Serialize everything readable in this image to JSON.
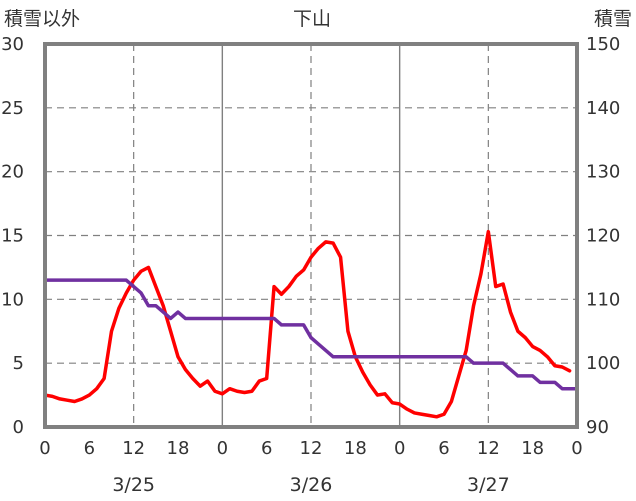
{
  "chart_data": {
    "type": "line",
    "title": "下山",
    "left_axis_label": "積雪以外",
    "right_axis_label": "積雪",
    "grid": true,
    "y_left": {
      "min": 0,
      "max": 30,
      "ticks": [
        0,
        5,
        10,
        15,
        20,
        25,
        30
      ]
    },
    "y_right": {
      "min": 90,
      "max": 150,
      "ticks": [
        90,
        100,
        110,
        120,
        130,
        140,
        150
      ]
    },
    "x_axis": {
      "unit": "hour",
      "range_hours": [
        0,
        72
      ],
      "tick_labels": [
        "0",
        "6",
        "12",
        "18",
        "0",
        "6",
        "12",
        "18",
        "0",
        "6",
        "12",
        "18",
        "0"
      ],
      "date_labels": [
        {
          "label": "3/25",
          "hour": 12
        },
        {
          "label": "3/26",
          "hour": 36
        },
        {
          "label": "3/27",
          "hour": 60
        }
      ]
    },
    "series": [
      {
        "axis": "left",
        "color": "#FF0000",
        "points": [
          [
            0,
            2.5
          ],
          [
            1,
            2.4
          ],
          [
            2,
            2.2
          ],
          [
            3,
            2.1
          ],
          [
            4,
            2.0
          ],
          [
            5,
            2.2
          ],
          [
            6,
            2.5
          ],
          [
            7,
            3.0
          ],
          [
            8,
            3.8
          ],
          [
            9,
            7.5
          ],
          [
            10,
            9.3
          ],
          [
            11,
            10.5
          ],
          [
            12,
            11.5
          ],
          [
            13,
            12.2
          ],
          [
            14,
            12.5
          ],
          [
            15,
            11.0
          ],
          [
            16,
            9.5
          ],
          [
            17,
            7.5
          ],
          [
            18,
            5.5
          ],
          [
            19,
            4.5
          ],
          [
            20,
            3.8
          ],
          [
            21,
            3.2
          ],
          [
            22,
            3.6
          ],
          [
            23,
            2.8
          ],
          [
            24,
            2.6
          ],
          [
            25,
            3.0
          ],
          [
            26,
            2.8
          ],
          [
            27,
            2.7
          ],
          [
            28,
            2.8
          ],
          [
            29,
            3.6
          ],
          [
            30,
            3.8
          ],
          [
            31,
            11.0
          ],
          [
            32,
            10.4
          ],
          [
            33,
            11.0
          ],
          [
            34,
            11.8
          ],
          [
            35,
            12.3
          ],
          [
            36,
            13.3
          ],
          [
            37,
            14.0
          ],
          [
            38,
            14.5
          ],
          [
            39,
            14.4
          ],
          [
            40,
            13.3
          ],
          [
            41,
            7.5
          ],
          [
            42,
            5.5
          ],
          [
            43,
            4.3
          ],
          [
            44,
            3.3
          ],
          [
            45,
            2.5
          ],
          [
            46,
            2.6
          ],
          [
            47,
            1.9
          ],
          [
            48,
            1.8
          ],
          [
            49,
            1.4
          ],
          [
            50,
            1.1
          ],
          [
            51,
            1.0
          ],
          [
            52,
            0.9
          ],
          [
            53,
            0.8
          ],
          [
            54,
            1.0
          ],
          [
            55,
            2.0
          ],
          [
            56,
            4.0
          ],
          [
            57,
            6.0
          ],
          [
            58,
            9.5
          ],
          [
            59,
            12.0
          ],
          [
            60,
            15.3
          ],
          [
            61,
            11.0
          ],
          [
            62,
            11.2
          ],
          [
            63,
            9.0
          ],
          [
            64,
            7.5
          ],
          [
            65,
            7.0
          ],
          [
            66,
            6.3
          ],
          [
            67,
            6.0
          ],
          [
            68,
            5.5
          ],
          [
            69,
            4.8
          ],
          [
            70,
            4.7
          ],
          [
            71,
            4.4
          ]
        ]
      },
      {
        "axis": "right",
        "color": "#7030A0",
        "points": [
          [
            0,
            113
          ],
          [
            11,
            113
          ],
          [
            12,
            112
          ],
          [
            13,
            111
          ],
          [
            14,
            109
          ],
          [
            15,
            109
          ],
          [
            16,
            108
          ],
          [
            17,
            107
          ],
          [
            18,
            108
          ],
          [
            19,
            107
          ],
          [
            30,
            107
          ],
          [
            31,
            107
          ],
          [
            32,
            106
          ],
          [
            35,
            106
          ],
          [
            36,
            104
          ],
          [
            37,
            103
          ],
          [
            38,
            102
          ],
          [
            39,
            101
          ],
          [
            52,
            101
          ],
          [
            53,
            101
          ],
          [
            57,
            101
          ],
          [
            58,
            100
          ],
          [
            62,
            100
          ],
          [
            63,
            99
          ],
          [
            64,
            98
          ],
          [
            66,
            98
          ],
          [
            67,
            97
          ],
          [
            69,
            97
          ],
          [
            70,
            96
          ],
          [
            72,
            96
          ]
        ]
      }
    ]
  }
}
